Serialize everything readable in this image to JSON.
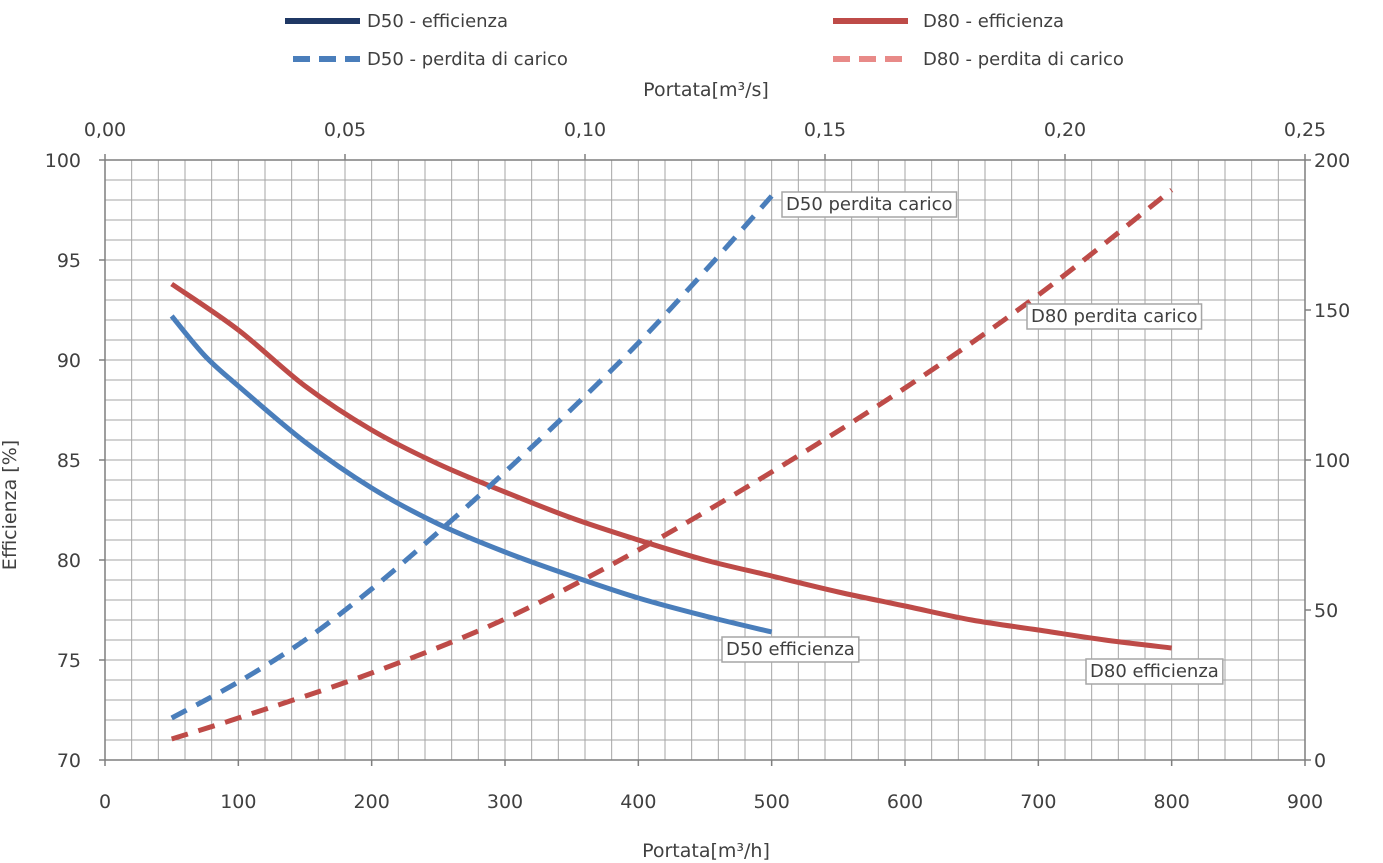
{
  "chart_data": {
    "type": "line",
    "grid": true,
    "legend_position": "top",
    "colors": {
      "d50_efficienza": "#1f3864",
      "d50_perdita": "#4a7ebb",
      "d80_efficienza": "#be4b48",
      "d80_perdita": "#e46c6a",
      "grid": "#a6a6a6",
      "axis_text": "#404040"
    },
    "axes": {
      "x_bottom": {
        "title": "Portata[m³/h]",
        "range": [
          0,
          900
        ],
        "ticks": [
          "0",
          "100",
          "200",
          "300",
          "400",
          "500",
          "600",
          "700",
          "800",
          "900"
        ]
      },
      "x_top": {
        "title": "Portata[m³/s]",
        "range": [
          0,
          0.25
        ],
        "ticks": [
          "0,00",
          "0,05",
          "0,10",
          "0,15",
          "0,20",
          "0,25"
        ]
      },
      "y_left": {
        "title": "Efficienza [%]",
        "range": [
          70,
          100
        ],
        "ticks": [
          "70",
          "75",
          "80",
          "85",
          "90",
          "95",
          "100"
        ]
      },
      "y_right": {
        "title": "",
        "range": [
          0,
          200
        ],
        "ticks": [
          "0",
          "50",
          "100",
          "150",
          "200"
        ]
      }
    },
    "legend": [
      {
        "label": "D50 - efficienza",
        "style": "solid",
        "color": "#1f3864"
      },
      {
        "label": "D80 - efficienza",
        "style": "solid",
        "color": "#be4b48"
      },
      {
        "label": "D50 - perdita di carico",
        "style": "dashed",
        "color": "#4a7ebb"
      },
      {
        "label": "D80 - perdita di carico",
        "style": "dashed",
        "color": "#e46c6a"
      }
    ],
    "series": [
      {
        "name": "D50 - efficienza",
        "axis": "left",
        "style": "solid",
        "color": "#4a7ebb",
        "label": "D50 efficienza",
        "x": [
          50,
          75,
          100,
          150,
          200,
          250,
          300,
          350,
          400,
          450,
          500
        ],
        "y": [
          92.2,
          90.2,
          88.7,
          85.9,
          83.6,
          81.8,
          80.4,
          79.2,
          78.1,
          77.2,
          76.4
        ]
      },
      {
        "name": "D80 - efficienza",
        "axis": "left",
        "style": "solid",
        "color": "#be4b48",
        "label": "D80 efficienza",
        "x": [
          50,
          100,
          150,
          200,
          250,
          300,
          350,
          400,
          450,
          500,
          550,
          600,
          650,
          700,
          750,
          800
        ],
        "y": [
          93.8,
          91.5,
          88.7,
          86.5,
          84.8,
          83.4,
          82.1,
          81.0,
          80.0,
          79.2,
          78.4,
          77.7,
          77.0,
          76.5,
          76.0,
          75.6
        ]
      },
      {
        "name": "D50 - perdita di carico",
        "axis": "right",
        "style": "dashed",
        "color": "#4a7ebb",
        "label": "D50 perdita carico",
        "x": [
          50,
          100,
          150,
          200,
          250,
          300,
          350,
          400,
          450,
          500
        ],
        "y": [
          14,
          26,
          40,
          57,
          76,
          96,
          117,
          139,
          163,
          188
        ]
      },
      {
        "name": "D80 - perdita di carico",
        "axis": "right",
        "style": "dashed",
        "color": "#be4b48",
        "label": "D80 perdita carico",
        "x": [
          50,
          100,
          200,
          300,
          400,
          500,
          600,
          700,
          800
        ],
        "y": [
          7,
          14,
          29,
          47,
          70,
          96,
          124,
          155,
          190
        ]
      }
    ]
  }
}
